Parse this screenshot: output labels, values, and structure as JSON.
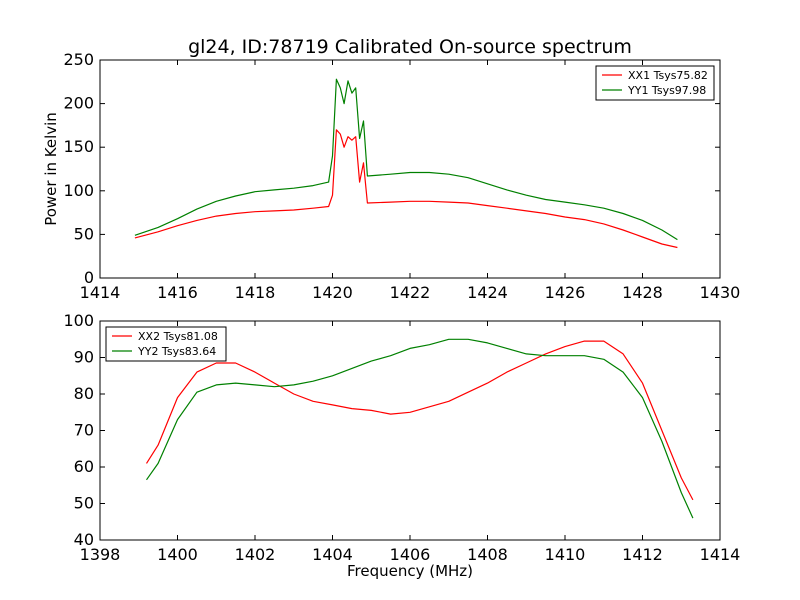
{
  "title": "gl24, ID:78719 Calibrated On-source spectrum",
  "chart_data": [
    {
      "type": "line",
      "title": "gl24, ID:78719 Calibrated On-source spectrum",
      "xlabel": "",
      "ylabel": "Power in Kelvin",
      "xlim": [
        1414,
        1430
      ],
      "ylim": [
        0,
        250
      ],
      "xticks": [
        1414,
        1416,
        1418,
        1420,
        1422,
        1424,
        1426,
        1428,
        1430
      ],
      "yticks": [
        0,
        50,
        100,
        150,
        200,
        250
      ],
      "grid": false,
      "legend": "top-right",
      "series": [
        {
          "name": "XX1 Tsys75.82",
          "color": "#ff0000",
          "points": [
            [
              1414.9,
              46
            ],
            [
              1415.5,
              53
            ],
            [
              1416,
              60
            ],
            [
              1416.5,
              66
            ],
            [
              1417,
              71
            ],
            [
              1417.5,
              74
            ],
            [
              1418,
              76
            ],
            [
              1418.5,
              77
            ],
            [
              1419,
              78
            ],
            [
              1419.5,
              80
            ],
            [
              1419.9,
              82
            ],
            [
              1420.0,
              95
            ],
            [
              1420.1,
              170
            ],
            [
              1420.2,
              165
            ],
            [
              1420.3,
              150
            ],
            [
              1420.4,
              162
            ],
            [
              1420.5,
              158
            ],
            [
              1420.6,
              162
            ],
            [
              1420.7,
              110
            ],
            [
              1420.8,
              132
            ],
            [
              1420.9,
              86
            ],
            [
              1421.5,
              87
            ],
            [
              1422,
              88
            ],
            [
              1422.5,
              88
            ],
            [
              1423,
              87
            ],
            [
              1423.5,
              86
            ],
            [
              1424,
              83
            ],
            [
              1424.5,
              80
            ],
            [
              1425,
              77
            ],
            [
              1425.5,
              74
            ],
            [
              1426,
              70
            ],
            [
              1426.5,
              67
            ],
            [
              1427,
              62
            ],
            [
              1427.5,
              55
            ],
            [
              1428,
              47
            ],
            [
              1428.5,
              39
            ],
            [
              1428.9,
              35
            ]
          ]
        },
        {
          "name": "YY1 Tsys97.98",
          "color": "#008000",
          "points": [
            [
              1414.9,
              49
            ],
            [
              1415.5,
              58
            ],
            [
              1416,
              68
            ],
            [
              1416.5,
              79
            ],
            [
              1417,
              88
            ],
            [
              1417.5,
              94
            ],
            [
              1418,
              99
            ],
            [
              1418.5,
              101
            ],
            [
              1419,
              103
            ],
            [
              1419.5,
              106
            ],
            [
              1419.9,
              110
            ],
            [
              1420.0,
              140
            ],
            [
              1420.1,
              228
            ],
            [
              1420.2,
              218
            ],
            [
              1420.3,
              200
            ],
            [
              1420.4,
              226
            ],
            [
              1420.5,
              212
            ],
            [
              1420.6,
              218
            ],
            [
              1420.7,
              160
            ],
            [
              1420.8,
              180
            ],
            [
              1420.9,
              117
            ],
            [
              1421.5,
              119
            ],
            [
              1422,
              121
            ],
            [
              1422.5,
              121
            ],
            [
              1423,
              119
            ],
            [
              1423.5,
              115
            ],
            [
              1424,
              108
            ],
            [
              1424.5,
              101
            ],
            [
              1425,
              95
            ],
            [
              1425.5,
              90
            ],
            [
              1426,
              87
            ],
            [
              1426.5,
              84
            ],
            [
              1427,
              80
            ],
            [
              1427.5,
              74
            ],
            [
              1428,
              66
            ],
            [
              1428.5,
              55
            ],
            [
              1428.9,
              44
            ]
          ]
        }
      ]
    },
    {
      "type": "line",
      "title": "",
      "xlabel": "Frequency (MHz)",
      "ylabel": "",
      "xlim": [
        1398,
        1414
      ],
      "ylim": [
        40,
        100
      ],
      "xticks": [
        1398,
        1400,
        1402,
        1404,
        1406,
        1408,
        1410,
        1412,
        1414
      ],
      "yticks": [
        40,
        50,
        60,
        70,
        80,
        90,
        100
      ],
      "grid": false,
      "legend": "top-left",
      "series": [
        {
          "name": "XX2 Tsys81.08",
          "color": "#ff0000",
          "points": [
            [
              1399.2,
              61
            ],
            [
              1399.5,
              66
            ],
            [
              1400,
              79
            ],
            [
              1400.5,
              86
            ],
            [
              1401,
              88.5
            ],
            [
              1401.5,
              88.5
            ],
            [
              1402,
              86
            ],
            [
              1402.5,
              83
            ],
            [
              1403,
              80
            ],
            [
              1403.5,
              78
            ],
            [
              1404,
              77
            ],
            [
              1404.5,
              76
            ],
            [
              1405,
              75.5
            ],
            [
              1405.5,
              74.5
            ],
            [
              1406,
              75
            ],
            [
              1406.5,
              76.5
            ],
            [
              1407,
              78
            ],
            [
              1407.5,
              80.5
            ],
            [
              1408,
              83
            ],
            [
              1408.5,
              86
            ],
            [
              1409,
              88.5
            ],
            [
              1409.5,
              91
            ],
            [
              1410,
              93
            ],
            [
              1410.5,
              94.5
            ],
            [
              1411,
              94.5
            ],
            [
              1411.5,
              91
            ],
            [
              1412,
              83
            ],
            [
              1412.5,
              70
            ],
            [
              1413,
              57
            ],
            [
              1413.3,
              51
            ]
          ]
        },
        {
          "name": "YY2 Tsys83.64",
          "color": "#008000",
          "points": [
            [
              1399.2,
              56.5
            ],
            [
              1399.5,
              61
            ],
            [
              1400,
              73
            ],
            [
              1400.5,
              80.5
            ],
            [
              1401,
              82.5
            ],
            [
              1401.5,
              83
            ],
            [
              1402,
              82.5
            ],
            [
              1402.5,
              82
            ],
            [
              1403,
              82.5
            ],
            [
              1403.5,
              83.5
            ],
            [
              1404,
              85
            ],
            [
              1404.5,
              87
            ],
            [
              1405,
              89
            ],
            [
              1405.5,
              90.5
            ],
            [
              1406,
              92.5
            ],
            [
              1406.5,
              93.5
            ],
            [
              1407,
              95
            ],
            [
              1407.5,
              95
            ],
            [
              1408,
              94
            ],
            [
              1408.5,
              92.5
            ],
            [
              1409,
              91
            ],
            [
              1409.5,
              90.5
            ],
            [
              1410,
              90.5
            ],
            [
              1410.5,
              90.5
            ],
            [
              1411,
              89.5
            ],
            [
              1411.5,
              86
            ],
            [
              1412,
              79
            ],
            [
              1412.5,
              67
            ],
            [
              1413,
              53
            ],
            [
              1413.3,
              46
            ]
          ]
        }
      ]
    }
  ]
}
